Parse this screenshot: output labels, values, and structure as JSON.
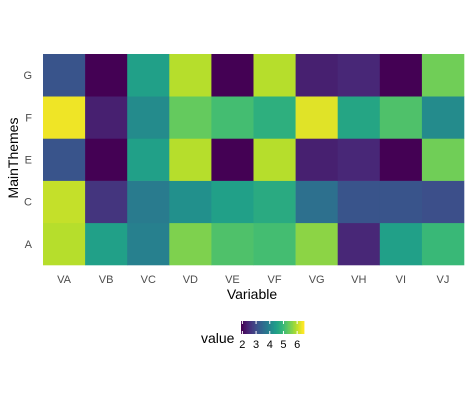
{
  "chart_data": {
    "type": "heatmap",
    "x_categories": [
      "VA",
      "VB",
      "VC",
      "VD",
      "VE",
      "VF",
      "VG",
      "VH",
      "VI",
      "VJ"
    ],
    "y_categories": [
      "A",
      "C",
      "E",
      "F",
      "G"
    ],
    "values": {
      "A": [
        6.0,
        4.5,
        3.9,
        5.6,
        5.2,
        5.1,
        5.7,
        2.4,
        4.5,
        5.0
      ],
      "C": [
        6.1,
        2.6,
        3.8,
        4.2,
        4.5,
        4.7,
        3.6,
        3.1,
        3.1,
        3.0
      ],
      "E": [
        3.1,
        1.9,
        4.5,
        6.0,
        1.9,
        6.0,
        2.3,
        2.4,
        1.9,
        5.5
      ],
      "F": [
        6.4,
        2.3,
        4.1,
        5.4,
        5.1,
        4.8,
        6.3,
        4.6,
        5.2,
        4.1
      ],
      "G": [
        3.1,
        1.9,
        4.5,
        6.0,
        1.9,
        6.0,
        2.3,
        2.4,
        1.9,
        5.5
      ]
    },
    "xlabel": "Variable",
    "ylabel": "MainThemes",
    "color_scale": "viridis",
    "clim": [
      1.9,
      6.5
    ],
    "legend": {
      "title": "value",
      "ticks": [
        2,
        3,
        4,
        5,
        6
      ],
      "placement": "bottom"
    },
    "grid": false
  }
}
